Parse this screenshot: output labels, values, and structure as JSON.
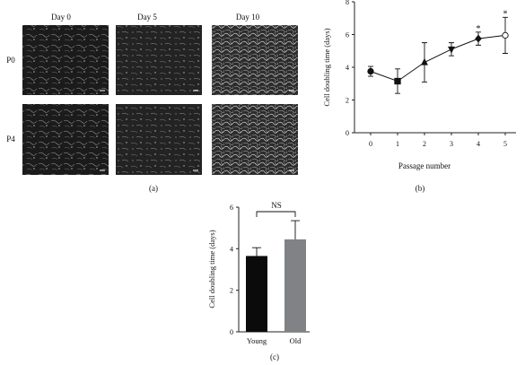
{
  "panel_a": {
    "columns": [
      "Day 0",
      "Day 5",
      "Day 10"
    ],
    "rows": [
      "P0",
      "P4"
    ],
    "caption": "(a)"
  },
  "chart_data": [
    {
      "type": "line",
      "panel": "b",
      "xlabel": "Passage number",
      "ylabel": "Cell doubling time (days)",
      "x": [
        0,
        1,
        2,
        3,
        4,
        5
      ],
      "xticks": [
        "0",
        "1",
        "2",
        "3",
        "4",
        "5"
      ],
      "yticks": [
        "0",
        "2",
        "4",
        "6",
        "8"
      ],
      "ylim": [
        0,
        8
      ],
      "xlim": [
        -0.6,
        5.4
      ],
      "values": [
        3.75,
        3.15,
        4.3,
        5.1,
        5.75,
        5.95
      ],
      "error": [
        0.3,
        0.75,
        1.2,
        0.4,
        0.4,
        1.1
      ],
      "markers": [
        "circle",
        "square",
        "triangle-up",
        "triangle-down",
        "diamond",
        "open-circle"
      ],
      "annotations": [
        {
          "x": 4,
          "label": "*"
        },
        {
          "x": 5,
          "label": "*"
        }
      ],
      "grid": false,
      "caption": "(b)"
    },
    {
      "type": "bar",
      "panel": "c",
      "ylabel": "Cell doubling time (days)",
      "categories": [
        "Young",
        "Old"
      ],
      "values": [
        3.65,
        4.45
      ],
      "error": [
        0.4,
        0.9
      ],
      "colors": [
        "#0b0b0b",
        "#808285"
      ],
      "yticks": [
        "0",
        "2",
        "4",
        "6"
      ],
      "ylim": [
        0,
        6
      ],
      "significance": "NS",
      "grid": false,
      "caption": "(c)"
    }
  ]
}
